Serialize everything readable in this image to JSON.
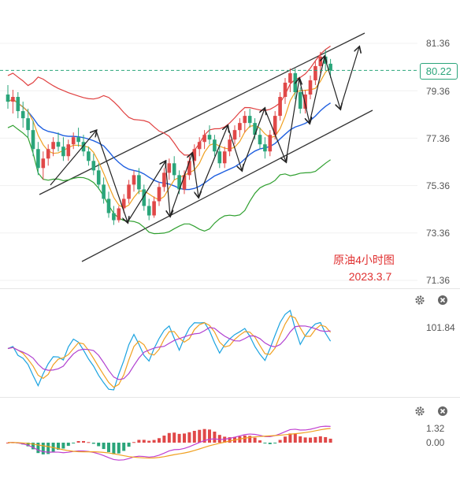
{
  "chart_data": {
    "type": "candlestick",
    "title": "原油4小时图",
    "subtitle": "2023.3.7",
    "y_ticks": [
      "81.36",
      "79.36",
      "77.36",
      "75.36",
      "73.36",
      "71.36"
    ],
    "ylim": [
      71.36,
      82.3
    ],
    "current_price": "80.22",
    "current_price_value": 80.22,
    "colors": {
      "up": "#e04848",
      "down": "#2aa57a",
      "boll_upper": "#e04040",
      "boll_mid": "#2060e0",
      "boll_lower": "#30a030",
      "ma_fast": "#f0a020",
      "channel": "#333333",
      "arrows": "#222222"
    },
    "candles": [
      [
        79.2,
        79.6,
        78.6,
        78.9
      ],
      [
        78.9,
        79.4,
        78.4,
        79.1
      ],
      [
        79.1,
        79.3,
        78.2,
        78.5
      ],
      [
        78.5,
        78.9,
        77.8,
        78.2
      ],
      [
        78.2,
        78.6,
        77.4,
        77.7
      ],
      [
        77.7,
        78.1,
        76.6,
        76.9
      ],
      [
        76.9,
        77.2,
        75.8,
        76.1
      ],
      [
        76.1,
        76.8,
        75.6,
        76.5
      ],
      [
        76.5,
        77.1,
        76.2,
        76.9
      ],
      [
        76.9,
        77.4,
        76.6,
        77.2
      ],
      [
        77.2,
        77.6,
        76.8,
        77.0
      ],
      [
        77.0,
        77.4,
        76.4,
        76.6
      ],
      [
        76.6,
        77.3,
        76.4,
        77.1
      ],
      [
        77.1,
        77.6,
        76.9,
        77.4
      ],
      [
        77.4,
        77.8,
        77.0,
        77.2
      ],
      [
        77.2,
        77.5,
        76.6,
        76.8
      ],
      [
        76.8,
        77.0,
        76.2,
        76.4
      ],
      [
        76.4,
        76.7,
        75.8,
        76.0
      ],
      [
        76.0,
        76.3,
        75.2,
        75.4
      ],
      [
        75.4,
        75.7,
        74.6,
        74.8
      ],
      [
        74.8,
        75.1,
        74.0,
        74.2
      ],
      [
        74.2,
        74.5,
        73.7,
        73.9
      ],
      [
        73.9,
        74.5,
        73.8,
        74.4
      ],
      [
        74.4,
        75.0,
        74.2,
        74.8
      ],
      [
        74.8,
        75.6,
        74.6,
        75.4
      ],
      [
        75.4,
        76.0,
        75.1,
        75.8
      ],
      [
        75.8,
        76.1,
        75.0,
        75.2
      ],
      [
        75.2,
        75.4,
        74.3,
        74.5
      ],
      [
        74.5,
        74.8,
        73.9,
        74.1
      ],
      [
        74.1,
        74.9,
        74.0,
        74.7
      ],
      [
        74.7,
        75.5,
        74.5,
        75.3
      ],
      [
        75.3,
        76.1,
        75.1,
        75.9
      ],
      [
        75.9,
        76.5,
        75.6,
        76.3
      ],
      [
        76.3,
        76.6,
        75.6,
        75.8
      ],
      [
        75.8,
        76.0,
        75.0,
        75.2
      ],
      [
        75.2,
        76.0,
        75.0,
        75.8
      ],
      [
        75.8,
        76.6,
        75.6,
        76.4
      ],
      [
        76.4,
        77.1,
        76.2,
        76.9
      ],
      [
        76.9,
        77.4,
        76.6,
        77.2
      ],
      [
        77.2,
        77.7,
        76.9,
        77.5
      ],
      [
        77.5,
        77.9,
        77.1,
        77.3
      ],
      [
        77.3,
        77.5,
        76.6,
        76.8
      ],
      [
        76.8,
        77.0,
        76.1,
        76.3
      ],
      [
        76.3,
        77.0,
        76.1,
        76.8
      ],
      [
        76.8,
        77.5,
        76.6,
        77.3
      ],
      [
        77.3,
        77.9,
        77.1,
        77.7
      ],
      [
        77.7,
        78.2,
        77.4,
        78.0
      ],
      [
        78.0,
        78.5,
        77.6,
        78.3
      ],
      [
        78.3,
        78.6,
        77.8,
        78.0
      ],
      [
        78.0,
        78.2,
        77.3,
        77.5
      ],
      [
        77.5,
        77.8,
        76.9,
        77.1
      ],
      [
        77.1,
        77.4,
        76.5,
        76.8
      ],
      [
        76.8,
        77.7,
        76.6,
        77.5
      ],
      [
        77.5,
        78.5,
        77.3,
        78.3
      ],
      [
        78.3,
        79.3,
        78.1,
        79.1
      ],
      [
        79.1,
        79.9,
        78.8,
        79.7
      ],
      [
        79.7,
        80.3,
        79.3,
        80.1
      ],
      [
        80.1,
        80.3,
        79.0,
        79.3
      ],
      [
        79.3,
        79.5,
        78.4,
        78.6
      ],
      [
        78.6,
        79.4,
        78.4,
        79.2
      ],
      [
        79.2,
        80.0,
        79.0,
        79.8
      ],
      [
        79.8,
        80.6,
        79.6,
        80.4
      ],
      [
        80.4,
        81.0,
        80.1,
        80.8
      ],
      [
        80.8,
        81.1,
        80.2,
        80.5
      ],
      [
        80.5,
        80.7,
        79.9,
        80.22
      ]
    ],
    "osc_tick": "101.84",
    "macd_ticks": [
      "1.32",
      "0.00"
    ]
  },
  "ui": {
    "gear_label": "settings",
    "close_label": "close"
  }
}
